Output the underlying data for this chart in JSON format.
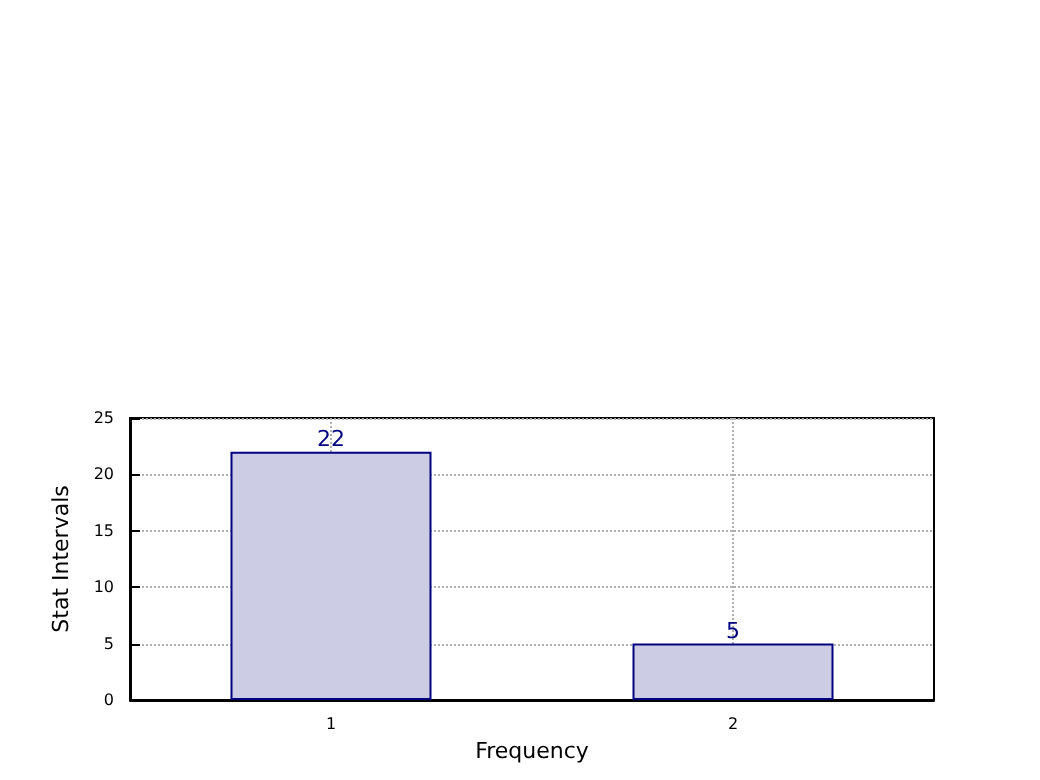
{
  "chart_data": {
    "type": "bar",
    "xlabel": "Frequency",
    "ylabel": "Stat Intervals",
    "categories": [
      "1",
      "2"
    ],
    "values": [
      22,
      5
    ],
    "color": "#cccce5",
    "ylim": [
      0,
      25
    ],
    "yticks": [
      0,
      5,
      10,
      15,
      20,
      25
    ],
    "grid": true,
    "data_labels": true
  }
}
